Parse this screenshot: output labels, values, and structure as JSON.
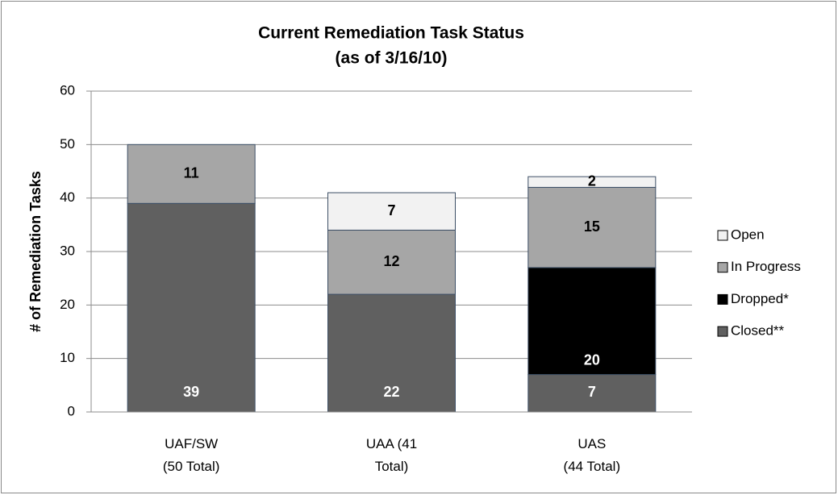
{
  "chart_data": {
    "type": "stacked_bar",
    "title": "Current Remediation Task Status",
    "subtitle": "(as of 3/16/10)",
    "y_label": "# of Remediation Tasks",
    "categories": [
      "UAF/SW\n(50 Total)",
      "UAA (41\nTotal)",
      "UAS\n(44 Total)"
    ],
    "series": [
      {
        "name": "Closed**",
        "color": "#606060",
        "values": [
          39,
          22,
          7
        ]
      },
      {
        "name": "Dropped*",
        "color": "#000000",
        "values": [
          0,
          0,
          20
        ]
      },
      {
        "name": "In Progress",
        "color": "#a6a6a6",
        "values": [
          11,
          12,
          15
        ]
      },
      {
        "name": "Open",
        "color": "#f2f2f2",
        "values": [
          0,
          7,
          2
        ]
      }
    ],
    "ylim": [
      0,
      60
    ],
    "yticks": [
      0,
      10,
      20,
      30,
      40,
      50,
      60
    ],
    "grid": true,
    "legend": "right"
  }
}
